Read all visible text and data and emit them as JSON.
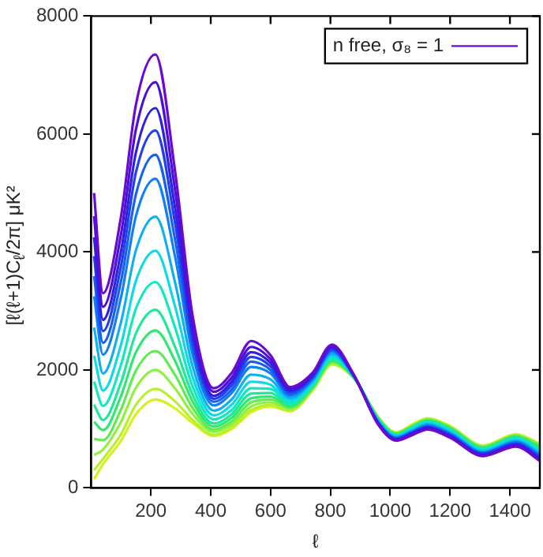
{
  "chart_data": {
    "type": "line",
    "xlabel": "ℓ",
    "ylabel": "[ℓ(ℓ+1)C$_{ℓ}$/2π] μK²",
    "legend": "top right",
    "marker": "none",
    "line_style": "solid",
    "grid": false,
    "xlim": [
      0,
      1500
    ],
    "xticks": [
      200,
      400,
      600,
      800,
      1000,
      1200,
      1400
    ],
    "ylim": [
      0,
      8000
    ],
    "yticks": [
      0,
      2000,
      4000,
      6000,
      8000
    ],
    "x": [
      10,
      40,
      100,
      150,
      215,
      280,
      340,
      410,
      470,
      535,
      600,
      665,
      740,
      805,
      880,
      960,
      1020,
      1075,
      1125,
      1200,
      1310,
      1420,
      1500
    ],
    "series": [
      {
        "name": "n free, σ₈ = 1",
        "color": "#6a0ad0",
        "values": [
          5000,
          3300,
          4600,
          6500,
          7350,
          5400,
          2900,
          1690,
          1950,
          2490,
          2250,
          1710,
          1950,
          2430,
          1900,
          1070,
          800,
          900,
          990,
          850,
          540,
          700,
          460
        ]
      },
      {
        "color": "#4a10d8",
        "values": [
          4610,
          3070,
          4300,
          6080,
          6880,
          5080,
          2760,
          1630,
          1870,
          2390,
          2180,
          1680,
          1930,
          2400,
          1900,
          1080,
          810,
          910,
          1010,
          870,
          550,
          720,
          480
        ]
      },
      {
        "color": "#3020e0",
        "values": [
          4250,
          2850,
          4010,
          5690,
          6440,
          4770,
          2620,
          1560,
          1800,
          2300,
          2120,
          1650,
          1900,
          2380,
          1890,
          1090,
          820,
          930,
          1020,
          880,
          560,
          730,
          500
        ]
      },
      {
        "color": "#2040ec",
        "values": [
          3930,
          2660,
          3760,
          5350,
          6060,
          4510,
          2500,
          1510,
          1740,
          2220,
          2060,
          1620,
          1880,
          2360,
          1890,
          1100,
          830,
          940,
          1030,
          890,
          580,
          750,
          520
        ]
      },
      {
        "color": "#1860f0",
        "values": [
          3590,
          2460,
          3500,
          4980,
          5650,
          4230,
          2380,
          1460,
          1670,
          2140,
          2000,
          1590,
          1860,
          2330,
          1890,
          1110,
          840,
          950,
          1040,
          910,
          590,
          760,
          540
        ]
      },
      {
        "color": "#1080f4",
        "values": [
          3250,
          2260,
          3230,
          4610,
          5240,
          3940,
          2250,
          1400,
          1610,
          2050,
          1940,
          1560,
          1840,
          2310,
          1880,
          1120,
          850,
          960,
          1060,
          920,
          600,
          780,
          560
        ]
      },
      {
        "color": "#10b0f0",
        "values": [
          2720,
          1940,
          2810,
          4030,
          4600,
          3500,
          2050,
          1310,
          1500,
          1920,
          1840,
          1520,
          1810,
          2270,
          1880,
          1130,
          870,
          980,
          1080,
          940,
          620,
          800,
          590
        ]
      },
      {
        "color": "#10d8e8",
        "values": [
          2240,
          1650,
          2430,
          3510,
          4020,
          3090,
          1870,
          1230,
          1410,
          1800,
          1750,
          1480,
          1780,
          2240,
          1870,
          1140,
          880,
          1000,
          1100,
          960,
          640,
          820,
          620
        ]
      },
      {
        "color": "#10e8c0",
        "values": [
          1800,
          1390,
          2090,
          3040,
          3490,
          2730,
          1710,
          1160,
          1320,
          1690,
          1680,
          1440,
          1750,
          2210,
          1870,
          1160,
          890,
          1020,
          1120,
          980,
          660,
          840,
          650
        ]
      },
      {
        "color": "#20e898",
        "values": [
          1410,
          1150,
          1790,
          2620,
          3020,
          2400,
          1570,
          1090,
          1250,
          1600,
          1610,
          1410,
          1730,
          2180,
          1860,
          1170,
          900,
          1030,
          1130,
          1000,
          670,
          860,
          670
        ]
      },
      {
        "color": "#30e870",
        "values": [
          1120,
          980,
          1560,
          2300,
          2670,
          2160,
          1460,
          1040,
          1190,
          1520,
          1550,
          1380,
          1710,
          2160,
          1860,
          1170,
          910,
          1040,
          1140,
          1010,
          680,
          870,
          690
        ]
      },
      {
        "color": "#60ec50",
        "values": [
          830,
          810,
          1330,
          1990,
          2320,
          1920,
          1350,
          990,
          1130,
          1450,
          1500,
          1360,
          1690,
          2140,
          1860,
          1180,
          920,
          1050,
          1150,
          1020,
          690,
          880,
          710
        ]
      },
      {
        "color": "#90f040",
        "values": [
          560,
          650,
          1120,
          1700,
          2000,
          1690,
          1250,
          950,
          1080,
          1380,
          1450,
          1340,
          1680,
          2120,
          1850,
          1190,
          930,
          1060,
          1160,
          1030,
          700,
          890,
          730
        ]
      },
      {
        "color": "#b8f030",
        "values": [
          300,
          490,
          910,
          1410,
          1680,
          1470,
          1150,
          900,
          1030,
          1320,
          1410,
          1310,
          1660,
          2100,
          1850,
          1200,
          940,
          1070,
          1170,
          1040,
          710,
          900,
          740
        ]
      },
      {
        "color": "#d8f020",
        "values": [
          150,
          400,
          800,
          1250,
          1500,
          1350,
          1100,
          880,
          1000,
          1280,
          1380,
          1300,
          1650,
          2090,
          1850,
          1200,
          940,
          1080,
          1180,
          1050,
          720,
          910,
          750
        ]
      }
    ]
  }
}
